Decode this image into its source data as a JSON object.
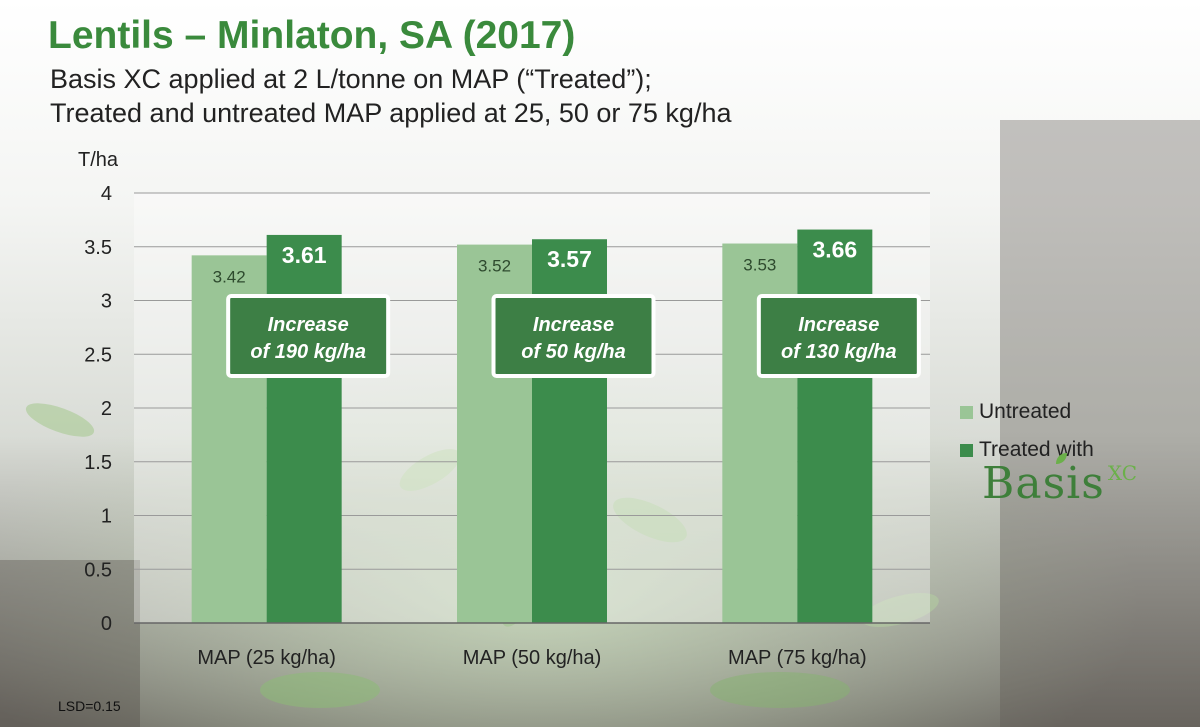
{
  "title": "Lentils – Minlaton, SA (2017)",
  "subtitle_lines": [
    "Basis XC applied at 2 L/tonne on MAP (“Treated”);",
    "Treated and untreated MAP applied at 25, 50 or 75 kg/ha"
  ],
  "footnote": "LSD=0.15",
  "colors": {
    "title": "#3a8a3c",
    "untreated": "#9ac596",
    "treated": "#3c8c4c",
    "callout": "#3d7f45"
  },
  "logo": {
    "text": "Basis",
    "sub": "XC"
  },
  "chart_data": {
    "type": "bar",
    "ylabel": "T/ha",
    "ylim": [
      0,
      4
    ],
    "yticks": [
      "0",
      "0.5",
      "1",
      "1.5",
      "2",
      "2.5",
      "3",
      "3.5",
      "4"
    ],
    "grid": true,
    "legend_position": "right",
    "categories": [
      "MAP (25 kg/ha)",
      "MAP (50 kg/ha)",
      "MAP (75 kg/ha)"
    ],
    "series": [
      {
        "name": "Untreated",
        "values": [
          3.42,
          3.52,
          3.53
        ],
        "labels": [
          "3.42",
          "3.52",
          "3.53"
        ]
      },
      {
        "name": "Treated with",
        "values": [
          3.61,
          3.57,
          3.66
        ],
        "labels": [
          "3.61",
          "3.57",
          "3.66"
        ]
      }
    ],
    "annotations": [
      {
        "line1": "Increase",
        "line2": "of 190 kg/ha"
      },
      {
        "line1": "Increase",
        "line2": "of 50 kg/ha"
      },
      {
        "line1": "Increase",
        "line2": "of 130 kg/ha"
      }
    ]
  }
}
